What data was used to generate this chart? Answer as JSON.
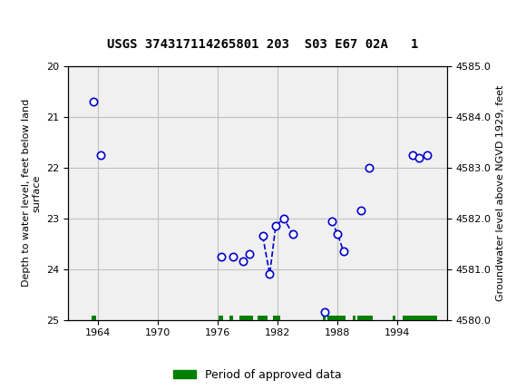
{
  "title": "USGS 374317114265801 203  S03 E67 02A   1",
  "ylabel_left": "Depth to water level, feet below land\nsurface",
  "ylabel_right": "Groundwater level above NGVD 1929, feet",
  "ylim_left": [
    25.0,
    20.0
  ],
  "ylim_right": [
    4580.0,
    4585.0
  ],
  "yticks_left": [
    20.0,
    21.0,
    22.0,
    23.0,
    24.0,
    25.0
  ],
  "yticks_right": [
    4580.0,
    4581.0,
    4582.0,
    4583.0,
    4584.0,
    4585.0
  ],
  "xlim": [
    1961,
    1999
  ],
  "xticks": [
    1964,
    1970,
    1976,
    1982,
    1988,
    1994
  ],
  "header_color": "#1a6b3c",
  "bg_color": "#f0f0f0",
  "grid_color": "#c0c0c0",
  "point_color": "#0000cc",
  "line_color": "#0000cc",
  "approved_color": "#008000",
  "data_points": [
    [
      1963.5,
      20.7
    ],
    [
      1964.2,
      21.75
    ],
    [
      1976.3,
      23.75
    ],
    [
      1977.5,
      23.75
    ],
    [
      1978.5,
      23.85
    ],
    [
      1979.2,
      23.7
    ],
    [
      1980.5,
      23.35
    ],
    [
      1981.2,
      24.1
    ],
    [
      1981.8,
      23.15
    ],
    [
      1982.6,
      23.0
    ],
    [
      1983.5,
      23.3
    ],
    [
      1986.7,
      24.85
    ],
    [
      1987.4,
      23.05
    ],
    [
      1988.0,
      23.3
    ],
    [
      1988.6,
      23.65
    ],
    [
      1990.4,
      22.85
    ],
    [
      1991.2,
      22.0
    ],
    [
      1995.5,
      21.75
    ],
    [
      1996.2,
      21.8
    ],
    [
      1997.0,
      21.75
    ]
  ],
  "connected_segments": [
    [
      [
        1980.5,
        23.35
      ],
      [
        1981.2,
        24.1
      ],
      [
        1981.8,
        23.15
      ],
      [
        1982.6,
        23.0
      ],
      [
        1983.5,
        23.3
      ]
    ],
    [
      [
        1987.4,
        23.05
      ],
      [
        1988.0,
        23.3
      ],
      [
        1988.6,
        23.65
      ]
    ]
  ],
  "approved_periods": [
    [
      1963.3,
      1963.8
    ],
    [
      1976.1,
      1976.5
    ],
    [
      1977.2,
      1977.5
    ],
    [
      1978.2,
      1979.5
    ],
    [
      1980.0,
      1981.0
    ],
    [
      1981.5,
      1982.3
    ],
    [
      1986.5,
      1986.8
    ],
    [
      1987.0,
      1988.8
    ],
    [
      1989.5,
      1989.8
    ],
    [
      1990.0,
      1991.5
    ],
    [
      1993.5,
      1993.8
    ],
    [
      1994.5,
      1998.0
    ]
  ]
}
